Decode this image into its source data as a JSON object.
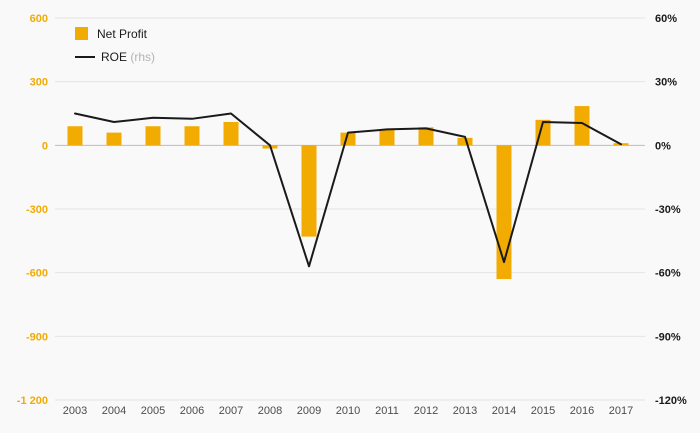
{
  "chart_data": {
    "type": "bar+line combo",
    "categories": [
      "2003",
      "2004",
      "2005",
      "2006",
      "2007",
      "2008",
      "2009",
      "2010",
      "2011",
      "2012",
      "2013",
      "2014",
      "2015",
      "2016",
      "2017"
    ],
    "series": [
      {
        "name": "Net Profit",
        "type": "bar",
        "axis": "left",
        "values": [
          90,
          60,
          90,
          90,
          110,
          -15,
          -430,
          60,
          75,
          85,
          35,
          -630,
          120,
          185,
          10
        ]
      },
      {
        "name": "ROE",
        "type": "line",
        "axis": "right",
        "values_pct": [
          15,
          11,
          13,
          12.5,
          15,
          0,
          -57,
          6,
          7.5,
          8,
          4,
          -55,
          11,
          10.5,
          0.5
        ]
      }
    ],
    "left_axis": {
      "tick_labels": [
        "600",
        "300",
        "0",
        "-300",
        "-600",
        "-900",
        "-1 200"
      ],
      "tick_values": [
        600,
        300,
        0,
        -300,
        -600,
        -900,
        -1200
      ],
      "min": -1200,
      "max": 600
    },
    "right_axis": {
      "tick_labels": [
        "60%",
        "30%",
        "0%",
        "-30%",
        "-60%",
        "-90%",
        "-120%"
      ],
      "tick_values": [
        60,
        30,
        0,
        -30,
        -60,
        -90,
        -120
      ],
      "min": -120,
      "max": 60
    },
    "legend": [
      {
        "label": "Net Profit",
        "sublabel": ""
      },
      {
        "label": "ROE",
        "sublabel": "(rhs)"
      }
    ],
    "grid": "horizontal only",
    "legend_position": "top-left inside plot"
  },
  "colors": {
    "bar": "#F2AB00",
    "line": "#1a1a1a",
    "grid": "#e4e4e4",
    "zero_line": "#bcbcbc",
    "background": "#f9f9f9",
    "left_tick_text": "#F2AB00",
    "right_tick_text": "#1a1a1a",
    "year_text": "#4d4d4d",
    "sub_text": "#b3b3b3"
  }
}
